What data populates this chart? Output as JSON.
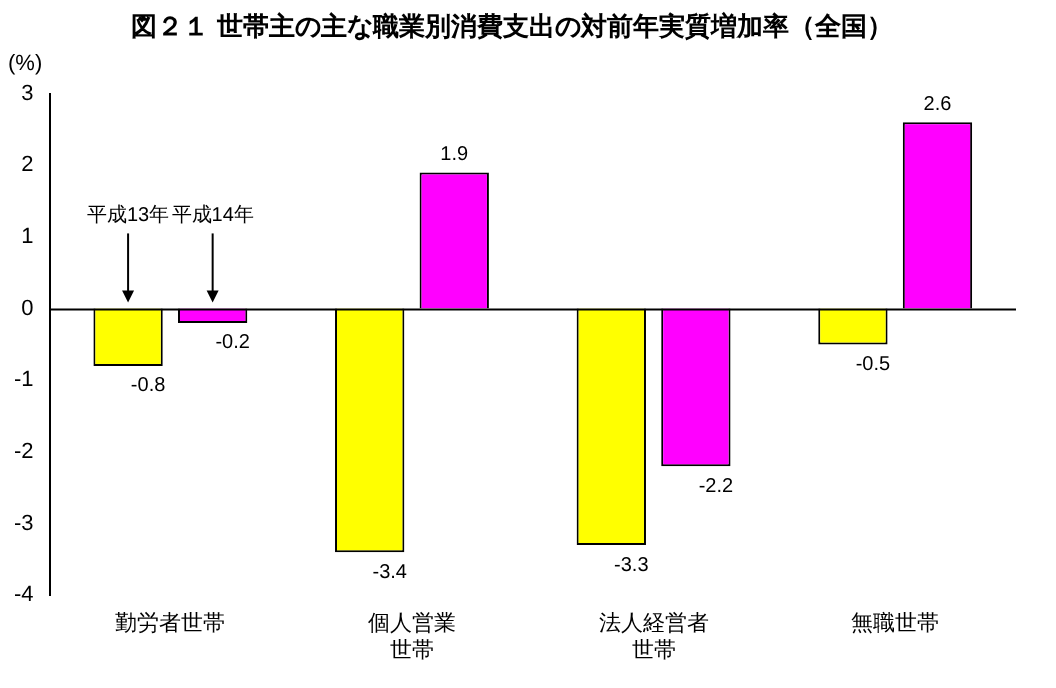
{
  "chart_data": {
    "type": "bar",
    "title": "図２１ 世帯主の主な職業別消費支出の対前年実質増加率（全国）",
    "ylabel": "(%)",
    "categories": [
      "勤労者世帯",
      "個人営業世帯",
      "法人経営者世帯",
      "無職世帯"
    ],
    "ref_lines": [
      {
        "axis": "y",
        "value": 0,
        "color": "#000000"
      }
    ],
    "series": [
      {
        "name": "平成13年",
        "color": "#ffff00",
        "values": [
          -0.8,
          -3.4,
          -3.3,
          -0.5
        ]
      },
      {
        "name": "平成14年",
        "color": "#ff00ff",
        "values": [
          -0.2,
          1.9,
          -2.2,
          2.6
        ]
      }
    ],
    "ylim": [
      -4,
      3
    ],
    "yticks": [
      -4,
      -3,
      -2,
      -1,
      0,
      1,
      2,
      3
    ],
    "grid": false,
    "legend": false,
    "data_labels": true
  }
}
